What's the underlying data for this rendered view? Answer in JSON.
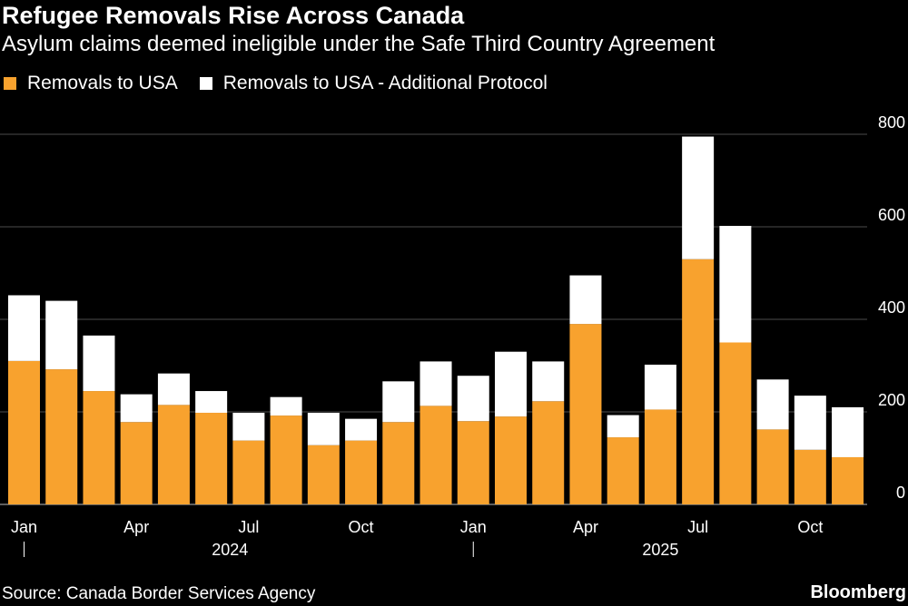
{
  "title": "Refugee Removals Rise Across Canada",
  "subtitle": "Asylum claims deemed ineligible under the Safe Third Country Agreement",
  "source": "Source: Canada Border Services Agency",
  "brand": "Bloomberg",
  "colors": {
    "primary": "#f8a22e",
    "secondary": "#ffffff",
    "background": "#000000",
    "grid": "#4d4d4d"
  },
  "legend": [
    {
      "label": "Removals to USA",
      "color": "#f8a22e"
    },
    {
      "label": "Removals to USA - Additional Protocol",
      "color": "#ffffff"
    }
  ],
  "chart_data": {
    "type": "bar",
    "stacked": true,
    "title": "Refugee Removals Rise Across Canada",
    "subtitle": "Asylum claims deemed ineligible under the Safe Third Country Agreement",
    "xlabel": "",
    "ylabel": "",
    "ylim": [
      0,
      800
    ],
    "yticks": [
      0,
      200,
      400,
      600,
      800
    ],
    "grid": true,
    "legend_position": "top-left",
    "categories": [
      "Jan 2024",
      "Feb 2024",
      "Mar 2024",
      "Apr 2024",
      "May 2024",
      "Jun 2024",
      "Jul 2024",
      "Aug 2024",
      "Sep 2024",
      "Oct 2024",
      "Nov 2024",
      "Dec 2024",
      "Jan 2025",
      "Feb 2025",
      "Mar 2025",
      "Apr 2025",
      "May 2025",
      "Jun 2025",
      "Jul 2025",
      "Aug 2025",
      "Sep 2025",
      "Oct 2025",
      "Nov 2025"
    ],
    "series": [
      {
        "name": "Removals to USA",
        "values": [
          310,
          292,
          245,
          178,
          215,
          198,
          138,
          192,
          128,
          138,
          178,
          213,
          180,
          190,
          223,
          390,
          145,
          205,
          530,
          350,
          162,
          118,
          102
        ]
      },
      {
        "name": "Removals to USA - Additional Protocol",
        "values": [
          142,
          148,
          120,
          60,
          68,
          47,
          60,
          40,
          70,
          47,
          88,
          96,
          98,
          140,
          86,
          105,
          48,
          97,
          265,
          252,
          108,
          117,
          108
        ]
      }
    ],
    "x_tick_labels": [
      {
        "index": 0,
        "label": "Jan"
      },
      {
        "index": 3,
        "label": "Apr"
      },
      {
        "index": 6,
        "label": "Jul"
      },
      {
        "index": 9,
        "label": "Oct"
      },
      {
        "index": 12,
        "label": "Jan"
      },
      {
        "index": 15,
        "label": "Apr"
      },
      {
        "index": 18,
        "label": "Jul"
      },
      {
        "index": 21,
        "label": "Oct"
      }
    ],
    "year_labels": [
      {
        "label": "2024",
        "start": 0,
        "end": 11
      },
      {
        "label": "2025",
        "start": 12,
        "end": 22
      }
    ]
  }
}
